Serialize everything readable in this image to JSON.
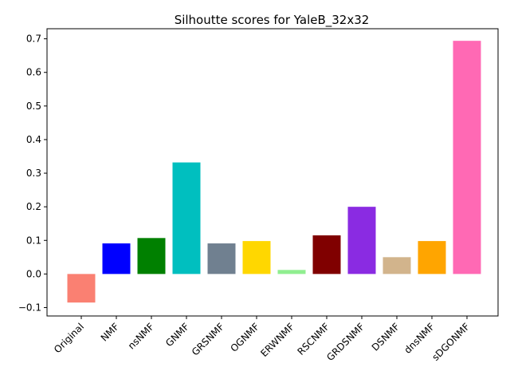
{
  "chart_data": {
    "type": "bar",
    "title": "Silhoutte scores for YaleB_32x32",
    "xlabel": "",
    "ylabel": "",
    "ylim": [
      -0.125,
      0.73
    ],
    "yticks": [
      -0.1,
      0.0,
      0.1,
      0.2,
      0.3,
      0.4,
      0.5,
      0.6,
      0.7
    ],
    "ytick_labels": [
      "−0.1",
      "0.0",
      "0.1",
      "0.2",
      "0.3",
      "0.4",
      "0.5",
      "0.6",
      "0.7"
    ],
    "categories": [
      "Original",
      "NMF",
      "nsNMF",
      "GNMF",
      "GRSNMF",
      "OGNMF",
      "ERWNMF",
      "RSCNMF",
      "GRDSNMF",
      "DSNMF",
      "dnsNMF",
      "sDGONMF"
    ],
    "values": [
      -0.085,
      0.091,
      0.107,
      0.332,
      0.091,
      0.098,
      0.012,
      0.115,
      0.2,
      0.05,
      0.098,
      0.694
    ],
    "colors": [
      "#fa8072",
      "#0000ff",
      "#008000",
      "#00bfbf",
      "#708090",
      "#ffd700",
      "#90ee90",
      "#800000",
      "#8a2be2",
      "#d2b48c",
      "#ffa500",
      "#ff69b4"
    ],
    "grid": false
  }
}
